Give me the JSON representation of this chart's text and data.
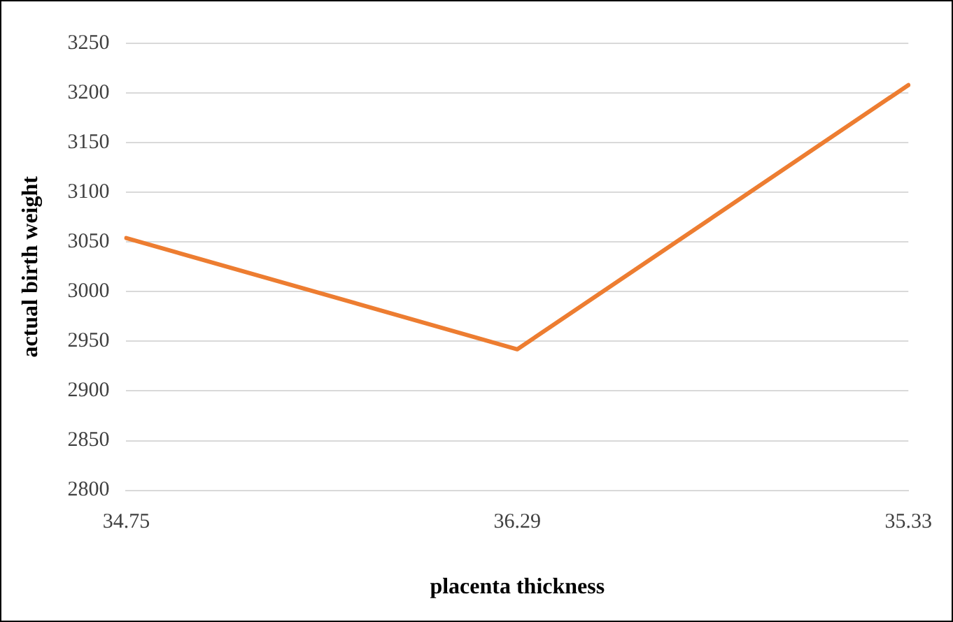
{
  "chart_data": {
    "type": "line",
    "xlabel": "placenta thickness",
    "ylabel": "actual birth weight",
    "categories": [
      "34.75",
      "36.29",
      "35.33"
    ],
    "series": [
      {
        "color": "#ed7d31",
        "values": [
          3054,
          2942,
          3208
        ]
      }
    ],
    "ylim": [
      2800,
      3250
    ],
    "yticks": [
      2800,
      2850,
      2900,
      2950,
      3000,
      3050,
      3100,
      3150,
      3200,
      3250
    ],
    "grid": "y",
    "legend": false,
    "marker": "none",
    "line_style": "solid"
  }
}
